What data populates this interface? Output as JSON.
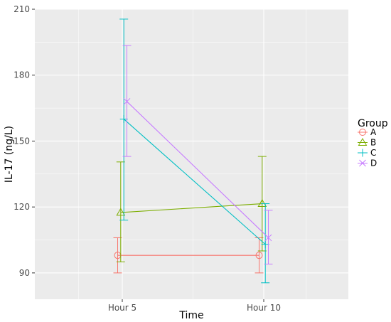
{
  "chart_data": {
    "type": "line",
    "xlabel": "Time",
    "ylabel": "IL-17 (ng/L)",
    "categories": [
      "Hour 5",
      "Hour 10"
    ],
    "ylim": [
      78,
      210
    ],
    "yticks": [
      90,
      120,
      150,
      180,
      210
    ],
    "grid": true,
    "legend": {
      "title": "Group",
      "position": "right"
    },
    "series": [
      {
        "name": "A",
        "color": "#F8766D",
        "marker": "circle",
        "values": [
          98,
          98
        ],
        "err_low": [
          90,
          90
        ],
        "err_high": [
          106,
          106
        ]
      },
      {
        "name": "B",
        "color": "#7CAE00",
        "marker": "triangle",
        "values": [
          117.5,
          121.5
        ],
        "err_low": [
          95,
          100
        ],
        "err_high": [
          140.5,
          143
        ]
      },
      {
        "name": "C",
        "color": "#00BFC4",
        "marker": "plus",
        "values": [
          160,
          103
        ],
        "err_low": [
          114,
          85.5
        ],
        "err_high": [
          205.5,
          121.5
        ]
      },
      {
        "name": "D",
        "color": "#C77CFF",
        "marker": "x",
        "values": [
          168,
          106
        ],
        "err_low": [
          143,
          94
        ],
        "err_high": [
          193.5,
          118.5
        ]
      }
    ]
  }
}
